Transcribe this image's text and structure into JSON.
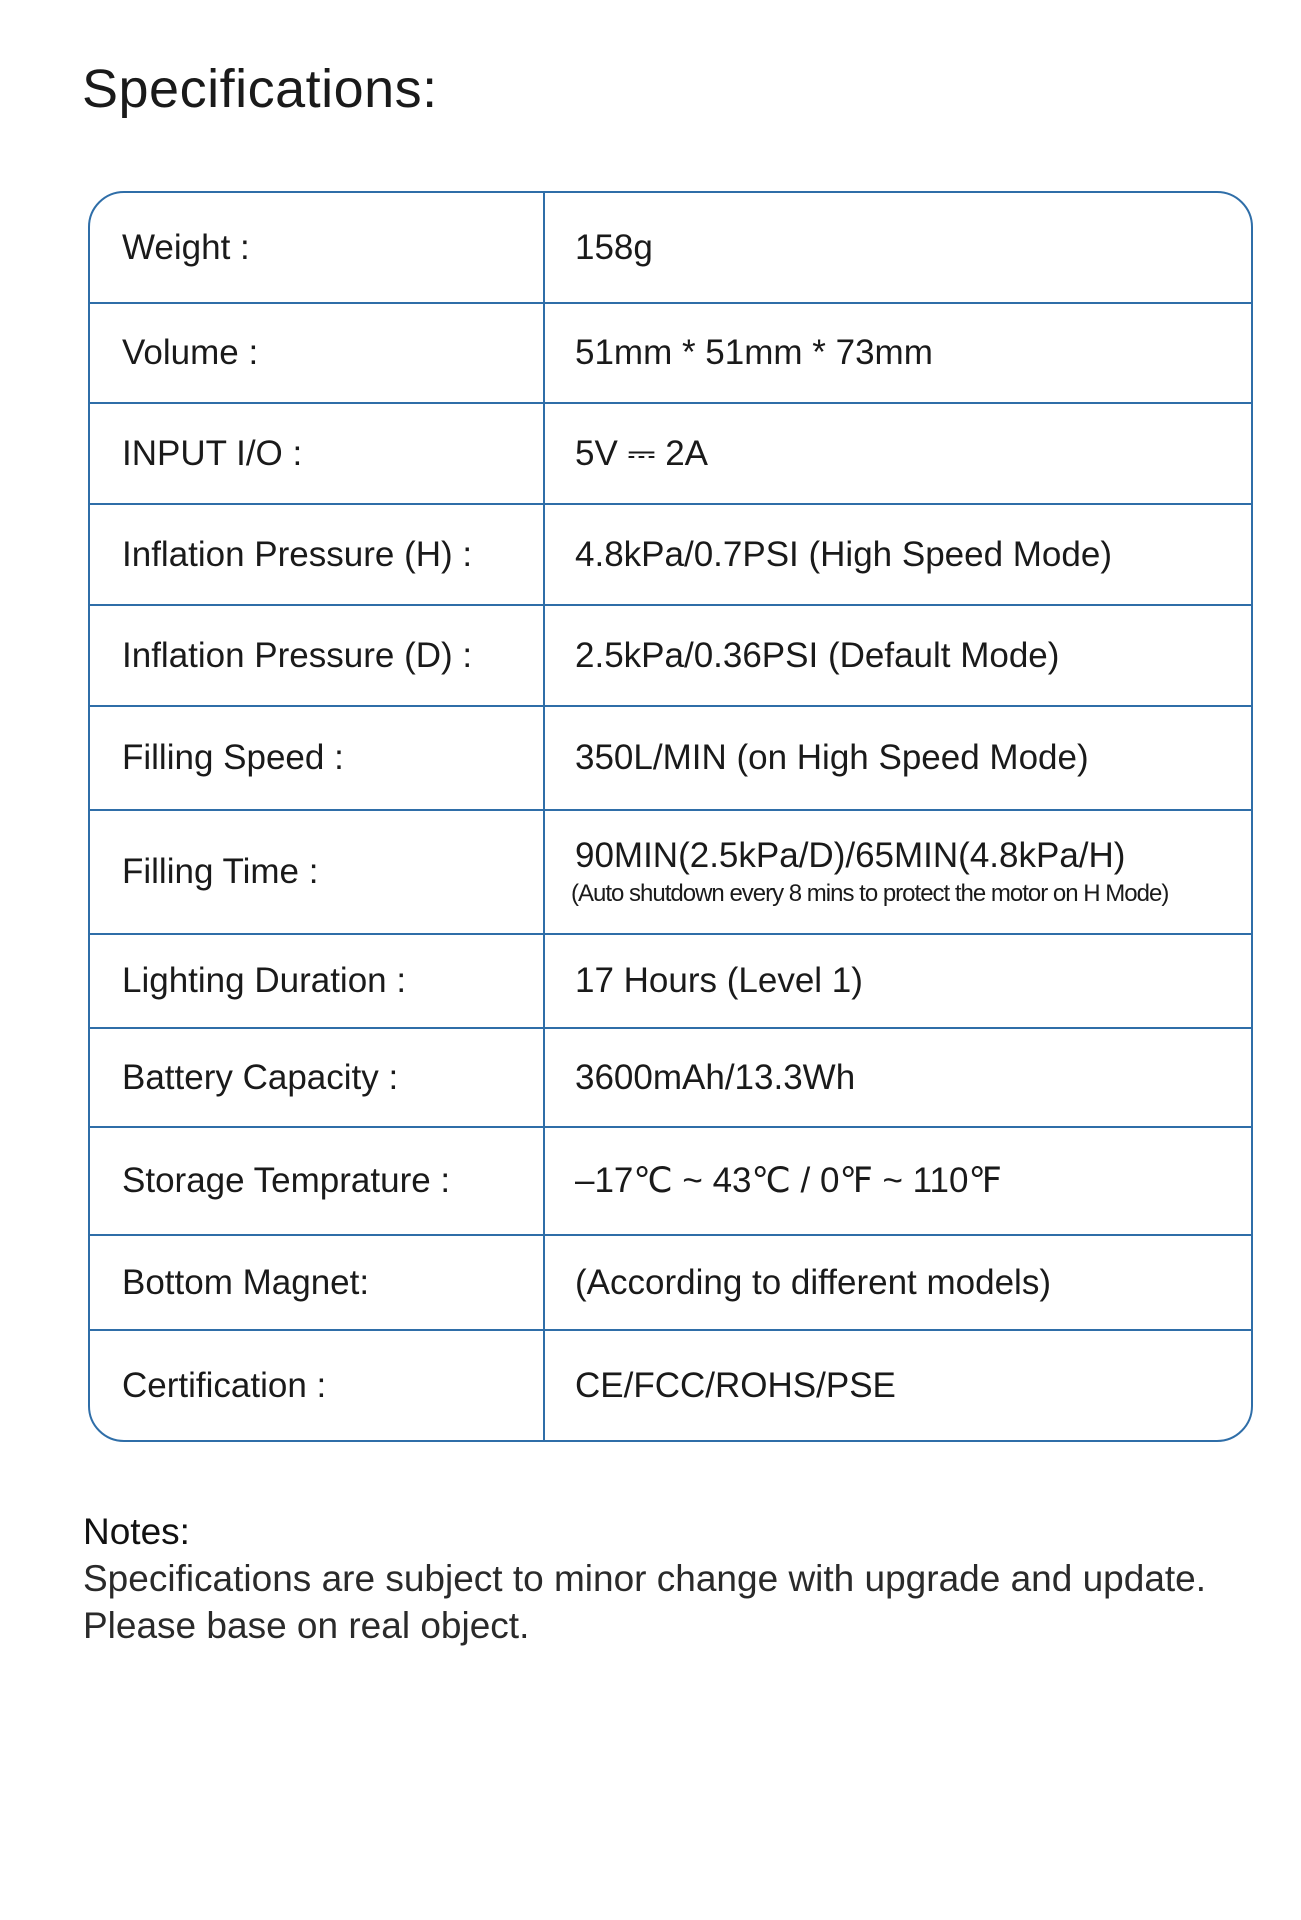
{
  "title": "Specifications:",
  "accent_color": "#2f6ea8",
  "rows": [
    {
      "label": "Weight :",
      "value": "158g"
    },
    {
      "label": "Volume :",
      "value": "51mm * 51mm * 73mm"
    },
    {
      "label": "INPUT I/O :",
      "value": "5V ⎓ 2A"
    },
    {
      "label": "Inflation Pressure (H) :",
      "value": "4.8kPa/0.7PSI (High Speed Mode)"
    },
    {
      "label": "Inflation Pressure (D) :",
      "value": "2.5kPa/0.36PSI (Default Mode)"
    },
    {
      "label": "Filling Speed :",
      "value": "350L/MIN (on High Speed Mode)"
    },
    {
      "label": "Filling Time :",
      "value": "90MIN(2.5kPa/D)/65MIN(4.8kPa/H)",
      "note": "(Auto shutdown every 8 mins to protect the motor on H Mode)"
    },
    {
      "label": "Lighting Duration :",
      "value": "17 Hours (Level 1)"
    },
    {
      "label": "Battery Capacity :",
      "value": "3600mAh/13.3Wh"
    },
    {
      "label": "Storage Temprature :",
      "value": "–17℃ ~ 43℃ / 0℉ ~ 110℉"
    },
    {
      "label": "Bottom Magnet:",
      "value": "(According to different models)"
    },
    {
      "label": "Certification :",
      "value": "CE/FCC/ROHS/PSE"
    }
  ],
  "notes": {
    "heading": "Notes:",
    "text": "Specifications are subject to minor change with upgrade and update. Please base on real object."
  }
}
